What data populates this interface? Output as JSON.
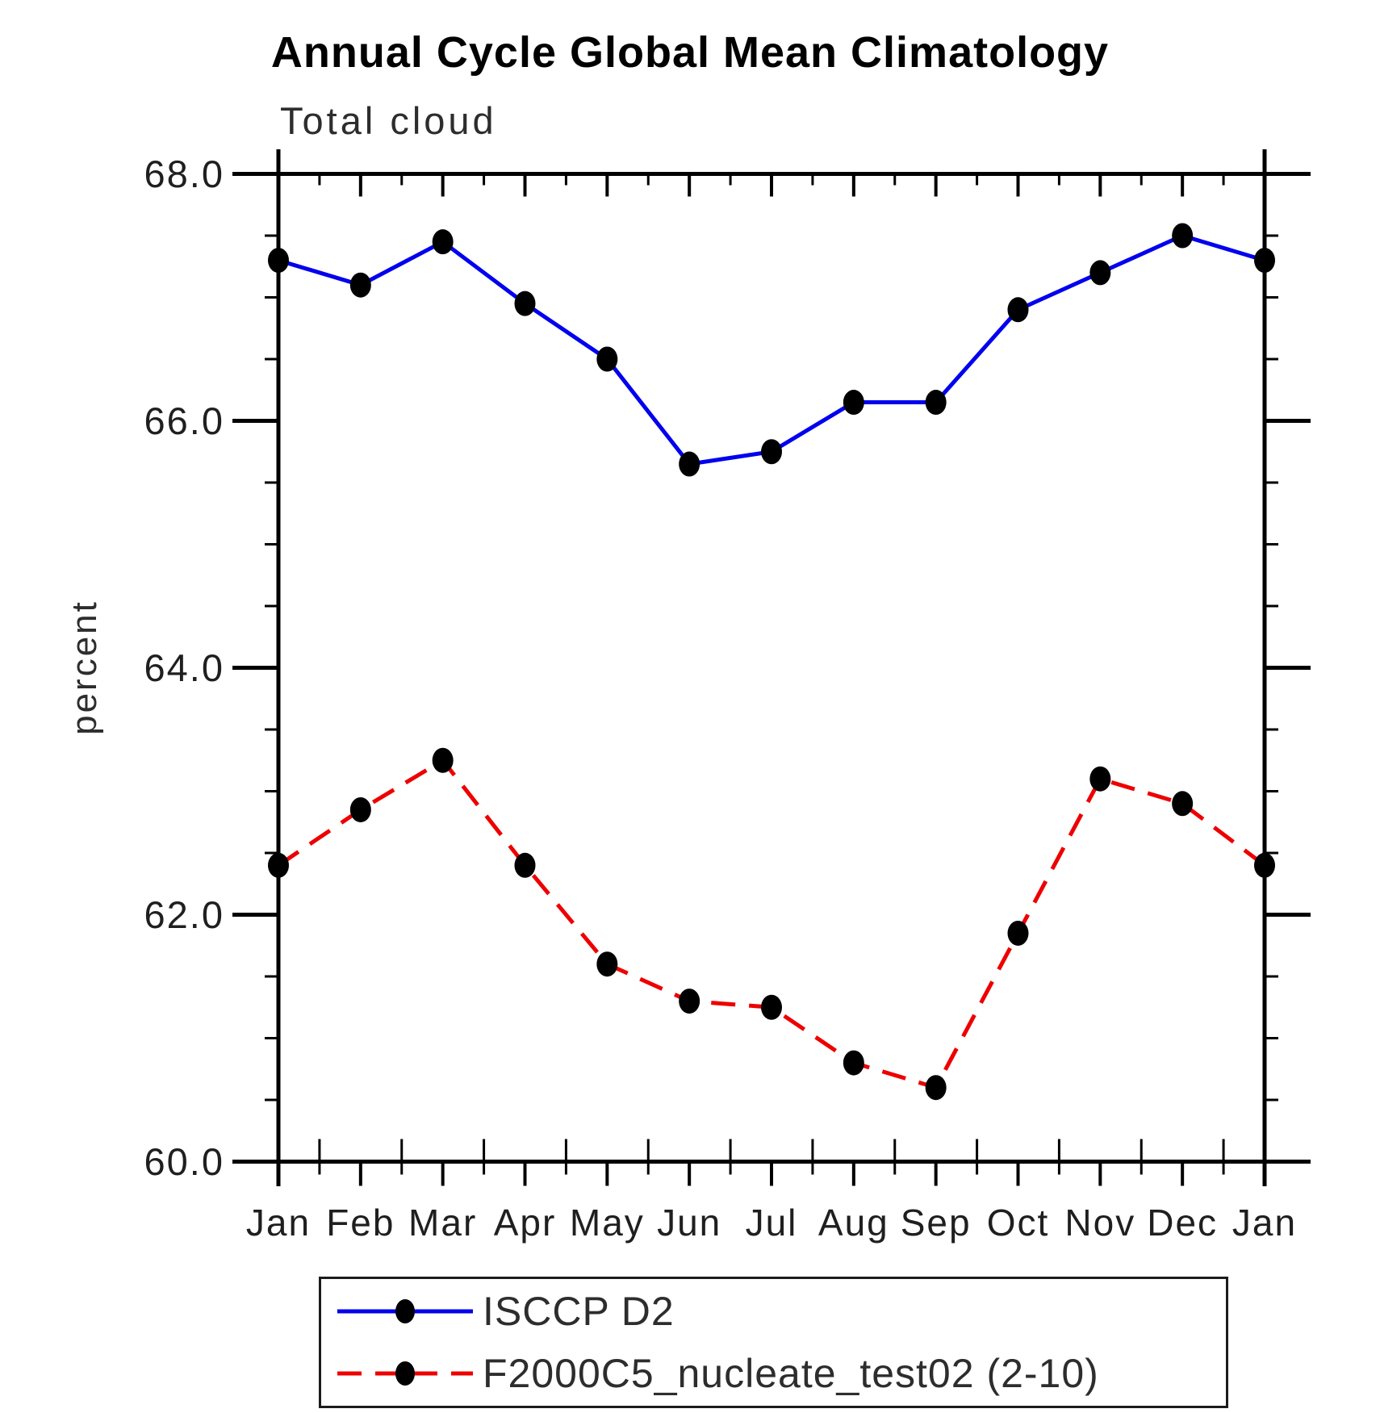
{
  "title": "Annual Cycle Global Mean Climatology",
  "subtitle": "Total cloud",
  "ylabel": "percent",
  "chart_data": {
    "type": "line",
    "categories": [
      "Jan",
      "Feb",
      "Mar",
      "Apr",
      "May",
      "Jun",
      "Jul",
      "Aug",
      "Sep",
      "Oct",
      "Nov",
      "Dec",
      "Jan"
    ],
    "series": [
      {
        "name": "ISCCP D2",
        "color": "#0000ee",
        "line_style": "solid",
        "marker": "circle",
        "marker_color": "#000000",
        "values": [
          67.3,
          67.1,
          67.45,
          66.95,
          66.5,
          65.65,
          65.75,
          66.15,
          66.15,
          66.9,
          67.2,
          67.5,
          67.3
        ]
      },
      {
        "name": "F2000C5_nucleate_test02 (2-10)",
        "color": "#ee0000",
        "line_style": "dashed",
        "marker": "circle",
        "marker_color": "#000000",
        "values": [
          62.4,
          62.85,
          63.25,
          62.4,
          61.6,
          61.3,
          61.25,
          60.8,
          60.6,
          61.85,
          63.1,
          62.9,
          62.4
        ]
      }
    ],
    "xlabel": "",
    "ylabel": "percent",
    "ylim": [
      60.0,
      68.0
    ],
    "yticks": [
      68.0,
      66.0,
      64.0,
      62.0,
      60.0
    ],
    "ytick_labels": [
      "68.0",
      "66.0",
      "64.0",
      "62.0",
      "60.0"
    ],
    "minor_tick_interval": 0.5,
    "grid": false,
    "legend_position": "bottom"
  }
}
